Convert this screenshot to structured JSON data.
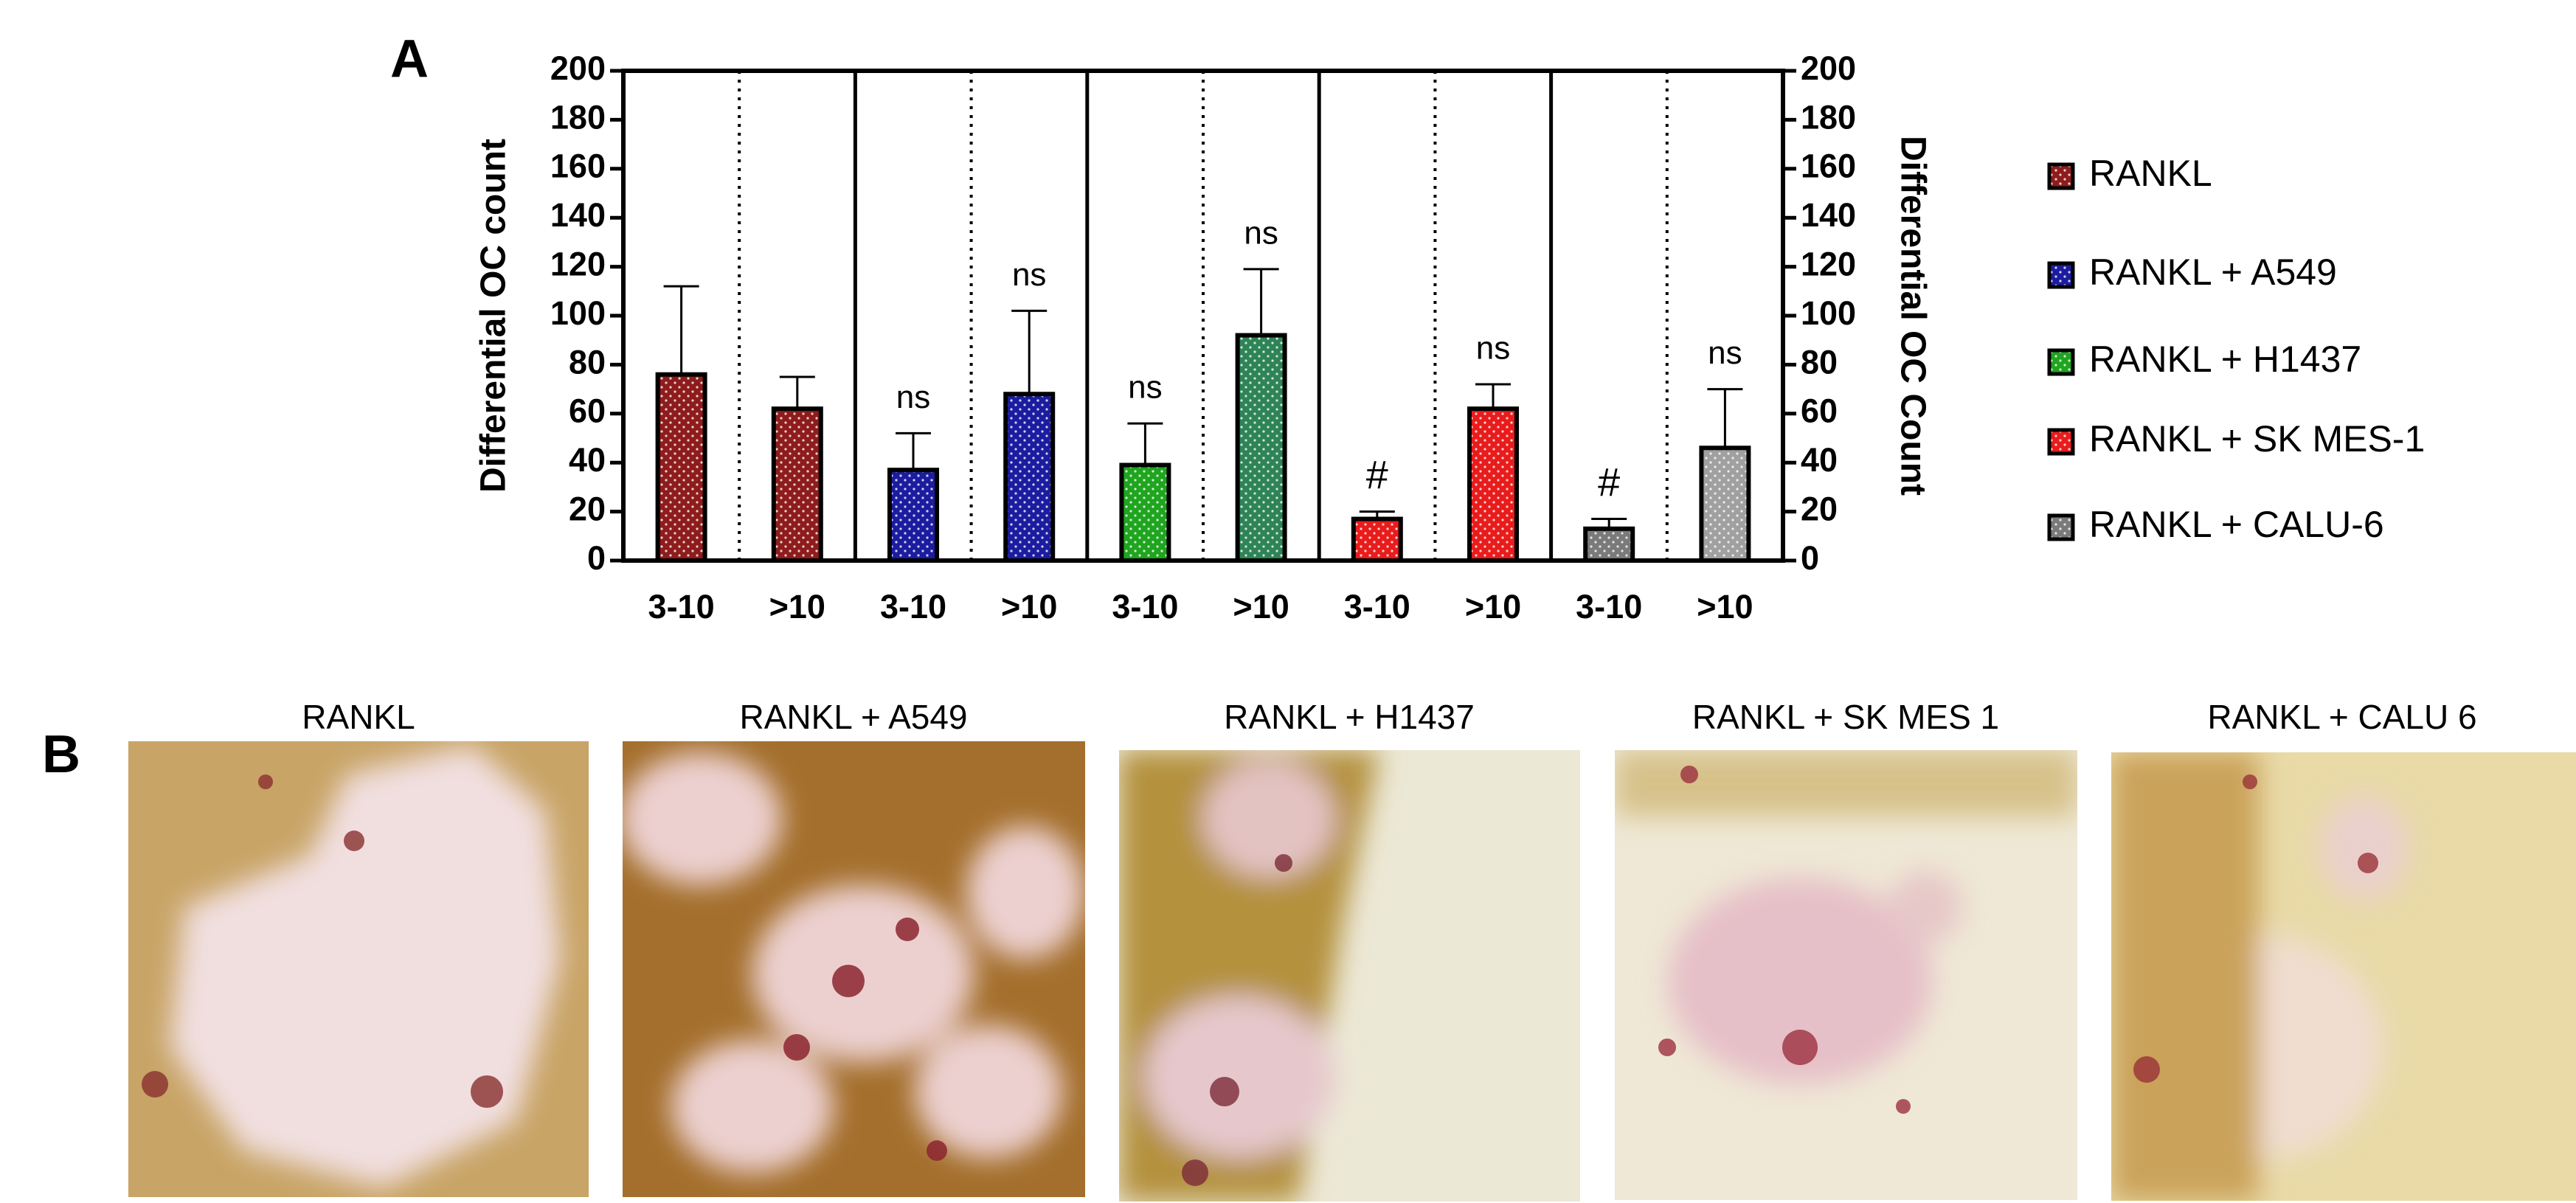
{
  "panel_labels": [
    "A",
    "B"
  ],
  "chart_data": {
    "type": "bar",
    "categories": [
      "3-10",
      ">10"
    ],
    "ylabel": "Differential OC count",
    "y2label": "Differential OC Count",
    "ylim": [
      0,
      200
    ],
    "yticks": [
      0,
      20,
      40,
      60,
      80,
      100,
      120,
      140,
      160,
      180,
      200
    ],
    "y2lim": [
      0,
      200
    ],
    "y2ticks": [
      0,
      20,
      40,
      60,
      80,
      100,
      120,
      140,
      160,
      180,
      200
    ],
    "legend": "right",
    "series": [
      {
        "name": "RANKL",
        "colors": [
          "#8e1c1c",
          "#8e1c1c"
        ],
        "values": [
          76,
          62
        ],
        "errors": [
          36,
          13
        ]
      },
      {
        "name": "RANKL + A549",
        "colors": [
          "#1c1ca0",
          "#1c1ca0"
        ],
        "values": [
          37,
          68
        ],
        "errors": [
          15,
          34
        ],
        "annotations": [
          "ns",
          "ns"
        ]
      },
      {
        "name": "RANKL + H1437",
        "colors": [
          "#1fa51f",
          "#2e8456"
        ],
        "values": [
          39,
          92
        ],
        "errors": [
          17,
          27
        ],
        "annotations": [
          "ns",
          "ns"
        ]
      },
      {
        "name": "RANKL + SK MES-1",
        "colors": [
          "#e81c1c",
          "#e81c1c"
        ],
        "values": [
          17,
          62
        ],
        "errors": [
          3,
          10
        ],
        "annotations": [
          "#",
          "ns"
        ]
      },
      {
        "name": "RANKL + CALU-6",
        "colors": [
          "#7a7a7a",
          "#a0a0a0"
        ],
        "values": [
          13,
          46
        ],
        "errors": [
          4,
          24
        ],
        "annotations": [
          "#",
          "ns"
        ]
      }
    ]
  },
  "images": [
    {
      "title": "RANKL"
    },
    {
      "title": "RANKL + A549"
    },
    {
      "title": "RANKL + H1437"
    },
    {
      "title": "RANKL + SK MES 1"
    },
    {
      "title": "RANKL + CALU 6"
    }
  ]
}
